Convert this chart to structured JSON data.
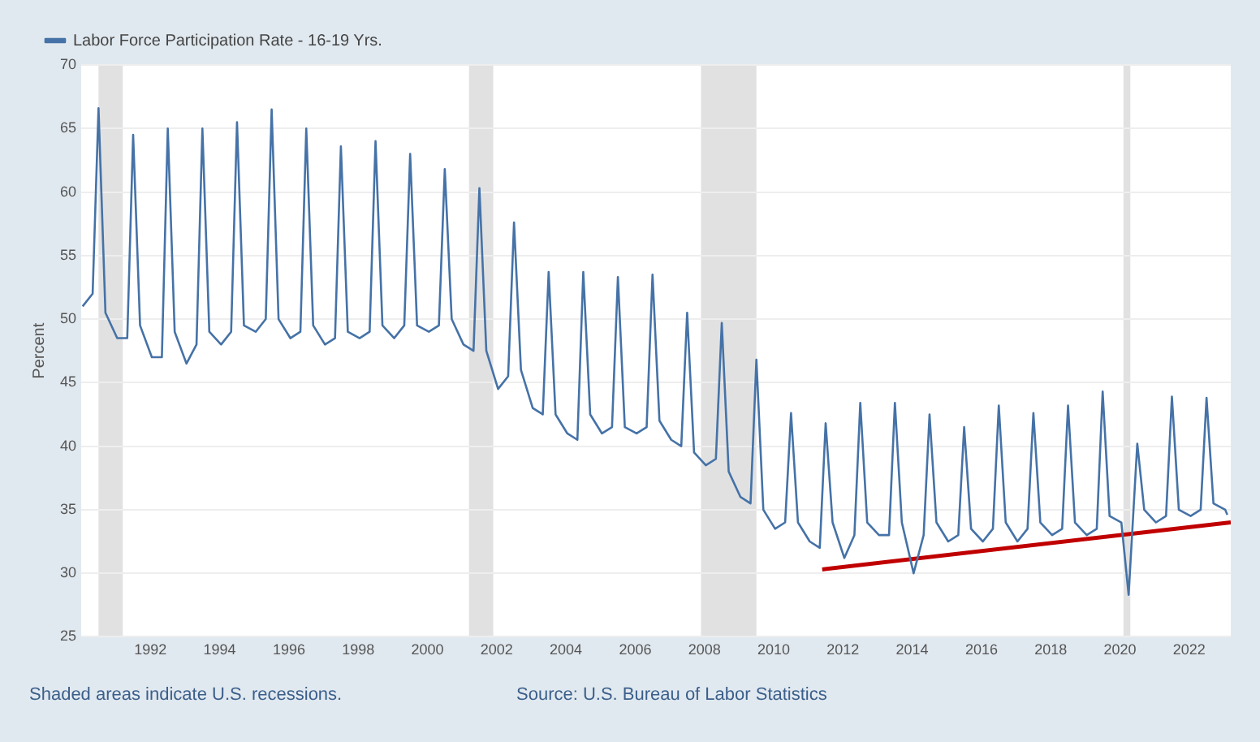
{
  "chart_data": {
    "type": "line",
    "ylabel": "Percent",
    "legend": "top left",
    "grid": "y",
    "marker": "none",
    "line_style": "solid",
    "xlim": [
      1990,
      2023.2
    ],
    "xticks": [
      1992,
      1994,
      1996,
      1998,
      2000,
      2002,
      2004,
      2006,
      2008,
      2010,
      2012,
      2014,
      2016,
      2018,
      2020,
      2022
    ],
    "ylim": [
      25,
      70
    ],
    "yticks": [
      25,
      30,
      35,
      40,
      45,
      50,
      55,
      60,
      65,
      70
    ],
    "bands": [
      {
        "axis": "x",
        "from": 1990.5,
        "to": 1991.2,
        "color": "#e1e1e1"
      },
      {
        "axis": "x",
        "from": 2001.2,
        "to": 2001.9,
        "color": "#e1e1e1"
      },
      {
        "axis": "x",
        "from": 2007.9,
        "to": 2009.5,
        "color": "#e1e1e1"
      },
      {
        "axis": "x",
        "from": 2020.1,
        "to": 2020.3,
        "color": "#e1e1e1"
      }
    ],
    "annotations": [
      "Shaded areas indicate U.S. recessions.",
      "Source: U.S. Bureau of Labor Statistics"
    ],
    "series": [
      {
        "name": "Labor Force Participation Rate - 16-19 Yrs.",
        "color": "#4572a7",
        "x": [
          1990.04,
          1990.33,
          1990.5,
          1990.7,
          1991.04,
          1991.33,
          1991.5,
          1991.7,
          1992.04,
          1992.33,
          1992.5,
          1992.7,
          1993.04,
          1993.33,
          1993.5,
          1993.7,
          1994.04,
          1994.33,
          1994.5,
          1994.7,
          1995.04,
          1995.33,
          1995.5,
          1995.7,
          1996.04,
          1996.33,
          1996.5,
          1996.7,
          1997.04,
          1997.33,
          1997.5,
          1997.7,
          1998.04,
          1998.33,
          1998.5,
          1998.7,
          1999.04,
          1999.33,
          1999.5,
          1999.7,
          2000.04,
          2000.33,
          2000.5,
          2000.7,
          2001.04,
          2001.33,
          2001.5,
          2001.7,
          2002.04,
          2002.33,
          2002.5,
          2002.7,
          2003.04,
          2003.33,
          2003.5,
          2003.7,
          2004.04,
          2004.33,
          2004.5,
          2004.7,
          2005.04,
          2005.33,
          2005.5,
          2005.7,
          2006.04,
          2006.33,
          2006.5,
          2006.7,
          2007.04,
          2007.33,
          2007.5,
          2007.7,
          2008.04,
          2008.33,
          2008.5,
          2008.7,
          2009.04,
          2009.33,
          2009.5,
          2009.7,
          2010.04,
          2010.33,
          2010.5,
          2010.7,
          2011.04,
          2011.33,
          2011.5,
          2011.7,
          2012.04,
          2012.33,
          2012.5,
          2012.7,
          2013.04,
          2013.33,
          2013.5,
          2013.7,
          2014.04,
          2014.33,
          2014.5,
          2014.7,
          2015.04,
          2015.33,
          2015.5,
          2015.7,
          2016.04,
          2016.33,
          2016.5,
          2016.7,
          2017.04,
          2017.33,
          2017.5,
          2017.7,
          2018.04,
          2018.33,
          2018.5,
          2018.7,
          2019.04,
          2019.33,
          2019.5,
          2019.7,
          2020.04,
          2020.25,
          2020.5,
          2020.7,
          2021.04,
          2021.33,
          2021.5,
          2021.7,
          2022.04,
          2022.33,
          2022.5,
          2022.7,
          2023.04,
          2023.1
        ],
        "values": [
          51,
          52,
          66.6,
          50.5,
          48.5,
          48.5,
          64.5,
          49.5,
          47,
          47,
          65,
          49,
          46.5,
          48,
          65,
          49,
          48,
          49,
          65.5,
          49.5,
          49,
          50,
          66.5,
          50,
          48.5,
          49,
          65,
          49.5,
          48,
          48.5,
          63.6,
          49,
          48.5,
          49,
          64,
          49.5,
          48.5,
          49.5,
          63,
          49.5,
          49,
          49.5,
          61.8,
          50,
          48,
          47.5,
          60.3,
          47.5,
          44.5,
          45.5,
          57.6,
          46,
          43,
          42.5,
          53.7,
          42.5,
          41,
          40.5,
          53.7,
          42.5,
          41,
          41.5,
          53.3,
          41.5,
          41,
          41.5,
          53.5,
          42,
          40.5,
          40,
          50.5,
          39.5,
          38.5,
          39,
          49.7,
          38,
          36,
          35.5,
          46.8,
          35,
          33.5,
          34,
          42.6,
          34,
          32.5,
          32,
          41.8,
          34,
          31.2,
          33,
          43.4,
          34,
          33,
          33,
          43.4,
          34,
          30,
          33,
          42.5,
          34,
          32.5,
          33,
          41.5,
          33.5,
          32.5,
          33.5,
          43.2,
          34,
          32.5,
          33.5,
          42.6,
          34,
          33,
          33.5,
          43.2,
          34,
          33,
          33.5,
          44.3,
          34.5,
          34,
          28.3,
          40.2,
          35,
          34,
          34.5,
          43.9,
          35,
          34.5,
          35,
          43.8,
          35.5,
          35,
          34.6
        ]
      },
      {
        "type": "line",
        "color": "#c00000",
        "x": [
          2011.4,
          2023.2
        ],
        "values": [
          30.3,
          34
        ]
      }
    ]
  }
}
